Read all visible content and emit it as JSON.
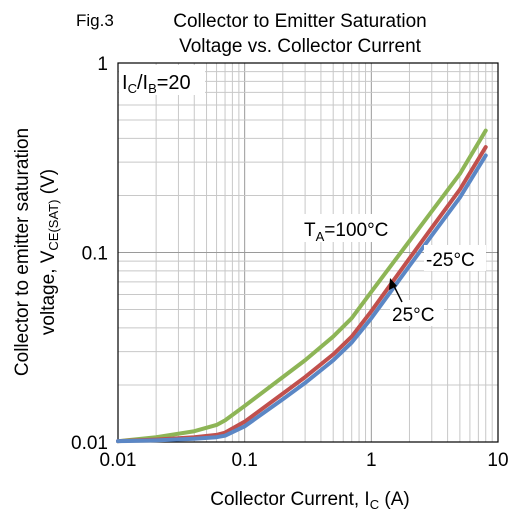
{
  "chart_data": {
    "type": "line",
    "figure_label": "Fig.3",
    "title_line1": "Collector to Emitter Saturation",
    "title_line2": "Voltage vs. Collector Current",
    "xlabel": "Collector Current, I",
    "xlabel_sub": "C",
    "xlabel_unit": " (A)",
    "ylabel": "Collector to emitter saturation",
    "ylabel2": "voltage, V",
    "ylabel2_sub": "CE(SAT)",
    "ylabel2_unit": " (V)",
    "condition_main": "I",
    "condition_sub1": "C",
    "condition_mid": "/I",
    "condition_sub2": "B",
    "condition_end": "=20",
    "x_scale": "log",
    "y_scale": "log",
    "xlim": [
      0.01,
      10
    ],
    "ylim": [
      0.01,
      1
    ],
    "grid": true,
    "x_ticks": [
      {
        "value": 0.01,
        "label": "0.01"
      },
      {
        "value": 0.1,
        "label": "0.1"
      },
      {
        "value": 1,
        "label": "1"
      },
      {
        "value": 10,
        "label": "10"
      }
    ],
    "y_ticks": [
      {
        "value": 0.01,
        "label": "0.01"
      },
      {
        "value": 0.1,
        "label": "0.1"
      },
      {
        "value": 1,
        "label": "1"
      }
    ],
    "series": [
      {
        "color": "#8db556",
        "x": [
          0.01,
          0.02,
          0.04,
          0.06,
          0.07,
          0.1,
          0.2,
          0.3,
          0.5,
          0.7,
          1,
          2,
          3,
          5,
          8
        ],
        "y": [
          0.0101,
          0.0106,
          0.0114,
          0.0123,
          0.013,
          0.0155,
          0.022,
          0.027,
          0.036,
          0.045,
          0.062,
          0.115,
          0.165,
          0.26,
          0.44
        ]
      },
      {
        "color": "#c0504d",
        "x": [
          0.01,
          0.02,
          0.04,
          0.06,
          0.07,
          0.1,
          0.2,
          0.3,
          0.5,
          0.7,
          1,
          2,
          3,
          5,
          8
        ],
        "y": [
          0.0101,
          0.0103,
          0.0106,
          0.0109,
          0.0112,
          0.0128,
          0.018,
          0.022,
          0.029,
          0.036,
          0.049,
          0.093,
          0.135,
          0.215,
          0.36
        ]
      },
      {
        "color": "#5b87c5",
        "x": [
          0.01,
          0.02,
          0.04,
          0.06,
          0.07,
          0.1,
          0.2,
          0.3,
          0.5,
          0.7,
          1,
          2,
          3,
          5,
          8
        ],
        "y": [
          0.0101,
          0.0102,
          0.0104,
          0.0106,
          0.0108,
          0.0121,
          0.0168,
          0.0205,
          0.027,
          0.0335,
          0.045,
          0.085,
          0.123,
          0.195,
          0.325
        ]
      }
    ],
    "annotations": {
      "ta100": {
        "prefix": "T",
        "sub": "A",
        "text": "=100°C"
      },
      "m25": {
        "text": "-25°C"
      },
      "p25": {
        "text": "25°C"
      }
    }
  }
}
